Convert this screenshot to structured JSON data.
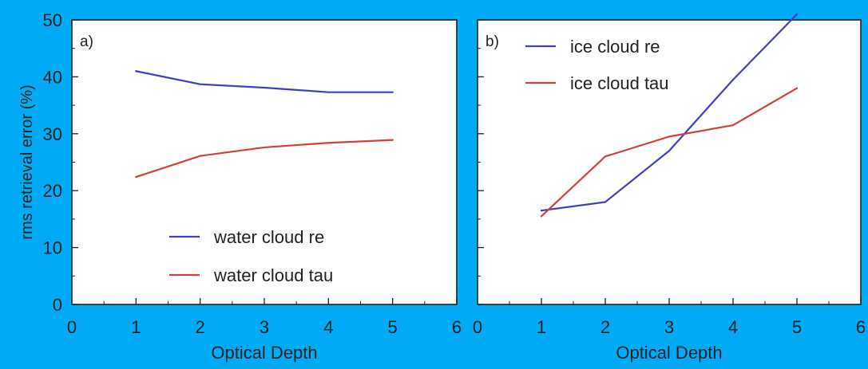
{
  "figure": {
    "background": "#00aaf5",
    "panel_background": "#ffffff"
  },
  "chart_data": [
    {
      "type": "line",
      "panel_label": "a)",
      "xlabel": "Optical Depth",
      "ylabel": "rms retrieval error (%)",
      "xlim": [
        0,
        6
      ],
      "ylim": [
        0,
        50
      ],
      "x_ticks": [
        0,
        1,
        2,
        3,
        4,
        5,
        6
      ],
      "y_ticks": [
        0,
        10,
        20,
        30,
        40,
        50
      ],
      "show_y_tick_labels": true,
      "legend_position": "bottom-center",
      "series": [
        {
          "name": "water cloud re",
          "color": "#4040c0",
          "x": [
            1,
            2,
            3,
            4,
            5
          ],
          "y": [
            41,
            38.7,
            38.1,
            37.3,
            37.3
          ]
        },
        {
          "name": "water cloud tau",
          "color": "#d04040",
          "x": [
            1,
            2,
            3,
            4,
            5
          ],
          "y": [
            22.4,
            26.1,
            27.6,
            28.4,
            28.9
          ]
        }
      ]
    },
    {
      "type": "line",
      "panel_label": "b)",
      "xlabel": "Optical Depth",
      "ylabel": "",
      "xlim": [
        0,
        6
      ],
      "ylim": [
        0,
        50
      ],
      "x_ticks": [
        0,
        1,
        2,
        3,
        4,
        5,
        6
      ],
      "y_ticks": [
        0,
        10,
        20,
        30,
        40,
        50
      ],
      "show_y_tick_labels": false,
      "legend_position": "top-left",
      "series": [
        {
          "name": "ice cloud re",
          "color": "#4040c0",
          "x": [
            1,
            2,
            3,
            4,
            5
          ],
          "y": [
            16.5,
            18,
            27,
            39.5,
            51
          ]
        },
        {
          "name": "ice cloud tau",
          "color": "#d04040",
          "x": [
            1,
            2,
            3,
            4,
            5
          ],
          "y": [
            15.5,
            26,
            29.5,
            31.5,
            38
          ]
        }
      ]
    }
  ]
}
